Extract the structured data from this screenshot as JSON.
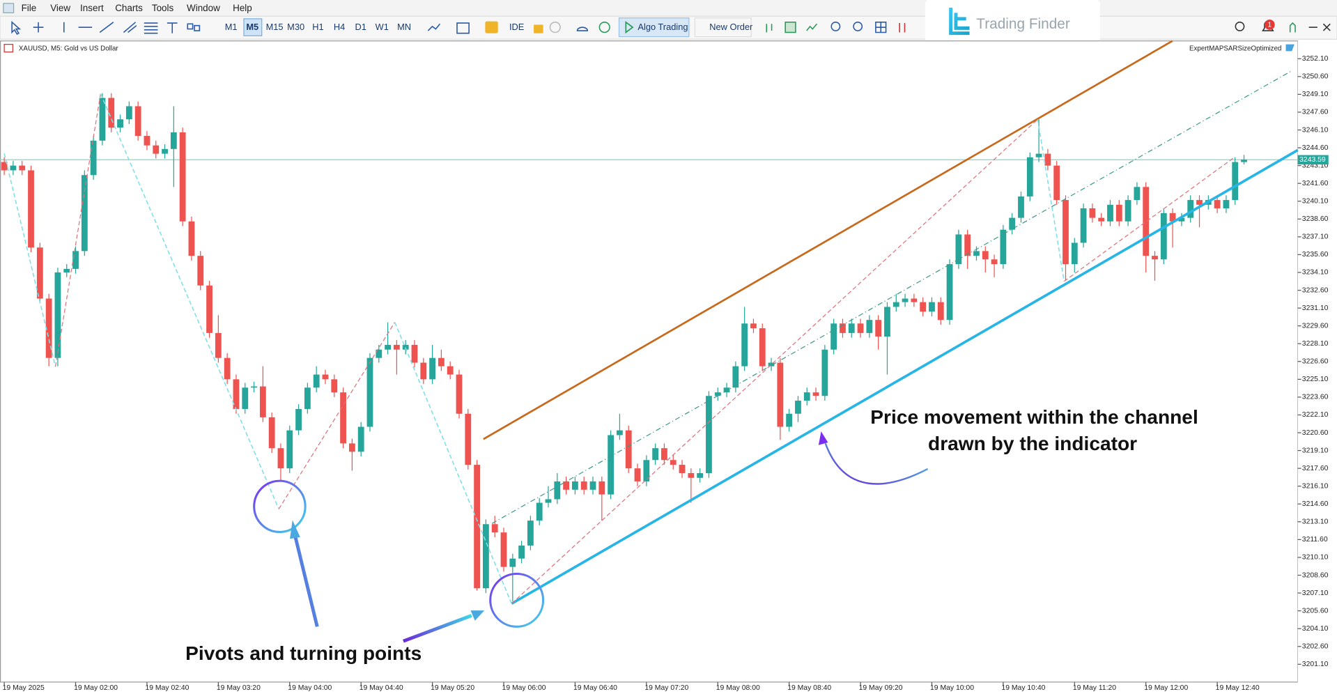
{
  "menu": [
    "File",
    "View",
    "Insert",
    "Charts",
    "Tools",
    "Window",
    "Help"
  ],
  "toolbar": {
    "timeframes": [
      "M1",
      "M5",
      "M15",
      "M30",
      "H1",
      "H4",
      "D1",
      "W1",
      "MN"
    ],
    "selected_timeframe": "M5",
    "ide": "IDE",
    "algo_trading": "Algo Trading",
    "new_order": "New Order"
  },
  "notification_count": 1,
  "logo": "Trading Finder",
  "chart_data": {
    "type": "candlestick",
    "title": "XAUUSD, M5:  Gold vs US Dollar",
    "expert": "ExpertMAPSARSizeOptimized",
    "categories": [
      "19 May 2025",
      null,
      null,
      null,
      null,
      null,
      null,
      null,
      "19 May 02:00",
      null,
      null,
      null,
      null,
      null,
      null,
      null,
      "19 May 02:40",
      null,
      null,
      null,
      null,
      null,
      null,
      null,
      "19 May 03:20",
      null,
      null,
      null,
      null,
      null,
      null,
      null,
      "19 May 04:00",
      null,
      null,
      null,
      null,
      null,
      null,
      null,
      "19 May 04:40",
      null,
      null,
      null,
      null,
      null,
      null,
      null,
      "19 May 05:20",
      null,
      null,
      null,
      null,
      null,
      null,
      null,
      "19 May 06:00",
      null,
      null,
      null,
      null,
      null,
      null,
      null,
      "19 May 06:40",
      null,
      null,
      null,
      null,
      null,
      null,
      null,
      "19 May 07:20",
      null,
      null,
      null,
      null,
      null,
      null,
      null,
      "19 May 08:00",
      null,
      null,
      null,
      null,
      null,
      null,
      null,
      "19 May 08:40",
      null,
      null,
      null,
      null,
      null,
      null,
      null,
      "19 May 09:20",
      null,
      null,
      null,
      null,
      null,
      null,
      null,
      "19 May 10:00",
      null,
      null,
      null,
      null,
      null,
      null,
      null,
      "19 May 10:40",
      null,
      null,
      null,
      null,
      null,
      null,
      null,
      "19 May 11:20",
      null,
      null,
      null,
      null,
      null,
      null,
      null,
      "19 May 12:00",
      null,
      null,
      null,
      null,
      null,
      null,
      null,
      "19 May 12:40",
      null,
      null,
      null
    ],
    "open": [
      3243.4,
      3242.7,
      3243.1,
      3242.7,
      3236.2,
      3231.9,
      3226.9,
      3234.1,
      3234.4,
      3235.9,
      3242.3,
      3245.2,
      3248.8,
      3246.3,
      3247.0,
      3248.1,
      3245.6,
      3244.8,
      3244.1,
      3244.5,
      3245.9,
      3238.4,
      3235.5,
      3233.0,
      3229.0,
      3226.9,
      3225.1,
      3222.6,
      3224.4,
      3224.5,
      3221.9,
      3219.3,
      3217.6,
      3220.8,
      3222.6,
      3224.4,
      3225.5,
      3225.1,
      3224.0,
      3219.7,
      3219.0,
      3221.1,
      3226.9,
      3227.6,
      3228.0,
      3227.6,
      3228.0,
      3226.5,
      3225.1,
      3226.9,
      3226.2,
      3225.5,
      3222.2,
      3217.9,
      3207.5,
      3212.9,
      3212.2,
      3209.3,
      3210.0,
      3211.1,
      3213.2,
      3214.7,
      3215.0,
      3216.5,
      3215.8,
      3216.5,
      3215.8,
      3216.5,
      3215.4,
      3220.4,
      3220.8,
      3217.6,
      3216.5,
      3218.3,
      3219.3,
      3218.3,
      3217.9,
      3217.2,
      3216.8,
      3217.2,
      3223.7,
      3224.0,
      3224.4,
      3226.2,
      3229.8,
      3229.4,
      3226.2,
      3226.5,
      3221.1,
      3222.2,
      3223.3,
      3224.0,
      3223.7,
      3227.6,
      3229.8,
      3229.0,
      3229.8,
      3229.0,
      3230.1,
      3228.7,
      3231.2,
      3231.6,
      3231.9,
      3231.6,
      3230.8,
      3231.6,
      3230.1,
      3234.8,
      3237.3,
      3235.5,
      3235.9,
      3235.2,
      3234.8,
      3237.7,
      3238.7,
      3240.5,
      3243.8,
      3244.1,
      3243.1,
      3240.2,
      3234.8,
      3236.6,
      3239.5,
      3238.7,
      3238.4,
      3239.8,
      3238.4,
      3240.2,
      3241.3,
      3235.5,
      3235.2,
      3239.1,
      3238.4,
      3238.7,
      3240.2,
      3239.8,
      3240.2,
      3239.5,
      3240.2,
      3243.4
    ],
    "high": [
      3243.8,
      3243.5,
      3243.5,
      3243.1,
      3236.6,
      3232.3,
      3234.5,
      3234.8,
      3236.3,
      3242.7,
      3245.6,
      3249.2,
      3249.2,
      3247.4,
      3248.5,
      3248.5,
      3246.0,
      3245.2,
      3244.9,
      3248.1,
      3246.3,
      3238.8,
      3235.9,
      3233.4,
      3230.5,
      3227.3,
      3225.5,
      3224.8,
      3224.9,
      3226.2,
      3222.3,
      3219.7,
      3221.2,
      3223.0,
      3224.8,
      3226.2,
      3225.9,
      3225.5,
      3224.4,
      3220.1,
      3221.5,
      3227.3,
      3228.0,
      3229.9,
      3228.4,
      3228.4,
      3228.4,
      3226.9,
      3228.0,
      3227.6,
      3226.6,
      3225.9,
      3222.6,
      3218.3,
      3213.3,
      3213.6,
      3212.6,
      3210.4,
      3211.5,
      3213.6,
      3215.1,
      3216.1,
      3217.2,
      3216.9,
      3216.9,
      3216.9,
      3216.9,
      3216.9,
      3220.8,
      3222.2,
      3221.2,
      3218.0,
      3218.7,
      3219.7,
      3219.7,
      3218.7,
      3218.3,
      3217.6,
      3217.6,
      3224.1,
      3224.4,
      3224.8,
      3226.6,
      3231.2,
      3230.2,
      3229.8,
      3226.9,
      3226.9,
      3222.6,
      3223.7,
      3224.4,
      3224.4,
      3228.0,
      3230.2,
      3230.2,
      3230.2,
      3230.2,
      3230.5,
      3230.5,
      3231.6,
      3232.3,
      3232.3,
      3232.3,
      3232.0,
      3232.0,
      3232.0,
      3235.2,
      3237.7,
      3237.7,
      3236.3,
      3236.3,
      3235.6,
      3238.1,
      3239.1,
      3240.9,
      3244.2,
      3247.0,
      3244.5,
      3243.5,
      3240.6,
      3237.0,
      3239.9,
      3239.9,
      3239.1,
      3240.2,
      3240.2,
      3240.6,
      3241.7,
      3241.7,
      3235.9,
      3239.5,
      3239.5,
      3239.1,
      3240.6,
      3240.6,
      3240.6,
      3240.6,
      3240.6,
      3243.8,
      3244.0
    ],
    "low": [
      3242.3,
      3242.3,
      3242.3,
      3235.8,
      3231.5,
      3226.2,
      3226.2,
      3233.7,
      3234.0,
      3235.5,
      3241.9,
      3244.8,
      3245.9,
      3245.9,
      3246.6,
      3245.2,
      3244.4,
      3243.7,
      3243.7,
      3241.3,
      3238.0,
      3235.1,
      3232.6,
      3228.6,
      3226.5,
      3224.7,
      3222.2,
      3222.2,
      3224.0,
      3221.5,
      3218.9,
      3216.5,
      3217.2,
      3220.4,
      3222.2,
      3224.0,
      3224.7,
      3223.6,
      3219.3,
      3217.4,
      3218.6,
      3220.7,
      3226.5,
      3227.2,
      3225.5,
      3227.2,
      3226.1,
      3224.7,
      3224.7,
      3225.8,
      3225.1,
      3221.8,
      3217.5,
      3207.3,
      3207.1,
      3211.8,
      3208.9,
      3206.4,
      3209.6,
      3210.7,
      3212.8,
      3214.3,
      3214.6,
      3215.4,
      3215.4,
      3215.4,
      3215.4,
      3213.2,
      3215.0,
      3220.0,
      3217.2,
      3216.1,
      3216.1,
      3217.9,
      3217.9,
      3217.5,
      3216.8,
      3214.7,
      3216.4,
      3216.8,
      3223.3,
      3223.6,
      3224.0,
      3225.8,
      3229.0,
      3225.8,
      3225.8,
      3220.0,
      3220.7,
      3221.5,
      3222.9,
      3223.3,
      3223.3,
      3227.2,
      3228.6,
      3228.6,
      3228.6,
      3228.6,
      3227.6,
      3225.5,
      3230.8,
      3231.2,
      3231.2,
      3230.4,
      3230.4,
      3229.7,
      3229.7,
      3234.4,
      3234.4,
      3235.1,
      3234.1,
      3233.7,
      3234.4,
      3237.3,
      3238.3,
      3240.1,
      3243.4,
      3242.7,
      3239.8,
      3233.4,
      3234.1,
      3236.2,
      3238.3,
      3238.0,
      3238.0,
      3238.0,
      3238.0,
      3239.8,
      3234.1,
      3233.4,
      3234.8,
      3236.2,
      3238.0,
      3238.3,
      3237.9,
      3239.4,
      3239.1,
      3239.1,
      3239.8,
      3243.2
    ],
    "close": [
      3242.7,
      3243.1,
      3242.7,
      3236.2,
      3231.9,
      3226.9,
      3234.1,
      3234.4,
      3235.9,
      3242.3,
      3245.2,
      3248.8,
      3246.3,
      3247.0,
      3248.1,
      3245.6,
      3244.8,
      3244.1,
      3244.5,
      3245.9,
      3238.4,
      3235.5,
      3233.0,
      3229.0,
      3226.9,
      3225.1,
      3222.6,
      3224.4,
      3224.5,
      3221.9,
      3219.3,
      3217.6,
      3220.8,
      3222.6,
      3224.4,
      3225.5,
      3225.1,
      3224.0,
      3219.7,
      3219.0,
      3221.1,
      3226.9,
      3227.6,
      3228.0,
      3227.6,
      3228.0,
      3226.5,
      3225.1,
      3226.9,
      3226.2,
      3225.5,
      3222.2,
      3217.9,
      3207.5,
      3212.9,
      3212.2,
      3209.3,
      3210.0,
      3211.1,
      3213.2,
      3214.7,
      3215.0,
      3216.5,
      3215.8,
      3216.5,
      3215.8,
      3216.5,
      3215.4,
      3220.4,
      3220.8,
      3217.6,
      3216.5,
      3218.3,
      3219.3,
      3218.3,
      3217.9,
      3217.2,
      3216.8,
      3217.2,
      3223.7,
      3224.0,
      3224.4,
      3226.2,
      3229.8,
      3229.4,
      3226.2,
      3226.5,
      3221.1,
      3222.2,
      3223.3,
      3224.0,
      3223.7,
      3227.6,
      3229.8,
      3229.0,
      3229.8,
      3229.0,
      3230.1,
      3228.7,
      3231.2,
      3231.6,
      3231.9,
      3231.6,
      3230.8,
      3231.6,
      3230.1,
      3234.8,
      3237.3,
      3235.5,
      3235.9,
      3235.2,
      3234.8,
      3237.7,
      3238.7,
      3240.5,
      3243.8,
      3244.1,
      3243.1,
      3240.2,
      3234.8,
      3236.6,
      3239.5,
      3238.7,
      3238.4,
      3239.8,
      3238.4,
      3240.2,
      3241.3,
      3235.5,
      3235.2,
      3239.1,
      3238.4,
      3238.7,
      3240.2,
      3239.8,
      3240.2,
      3239.5,
      3240.2,
      3243.4,
      3243.6
    ],
    "up_color": "#26a69a",
    "down_color": "#ef5350",
    "ylim": [
      3199.6,
      3253.6
    ],
    "yticks": [
      {
        "value": 3252.1,
        "label": "3252.10"
      },
      {
        "value": 3250.6,
        "label": "3250.60"
      },
      {
        "value": 3249.1,
        "label": "3249.10"
      },
      {
        "value": 3247.6,
        "label": "3247.60"
      },
      {
        "value": 3246.1,
        "label": "3246.10"
      },
      {
        "value": 3244.6,
        "label": "3244.60"
      },
      {
        "value": 3243.1,
        "label": "3243.10"
      },
      {
        "value": 3241.6,
        "label": "3241.60"
      },
      {
        "value": 3240.1,
        "label": "3240.10"
      },
      {
        "value": 3238.6,
        "label": "3238.60"
      },
      {
        "value": 3237.1,
        "label": "3237.10"
      },
      {
        "value": 3235.6,
        "label": "3235.60"
      },
      {
        "value": 3234.1,
        "label": "3234.10"
      },
      {
        "value": 3232.6,
        "label": "3232.60"
      },
      {
        "value": 3231.1,
        "label": "3231.10"
      },
      {
        "value": 3229.6,
        "label": "3229.60"
      },
      {
        "value": 3228.1,
        "label": "3228.10"
      },
      {
        "value": 3226.6,
        "label": "3226.60"
      },
      {
        "value": 3225.1,
        "label": "3225.10"
      },
      {
        "value": 3223.6,
        "label": "3223.60"
      },
      {
        "value": 3222.1,
        "label": "3222.10"
      },
      {
        "value": 3220.6,
        "label": "3220.60"
      },
      {
        "value": 3219.1,
        "label": "3219.10"
      },
      {
        "value": 3217.6,
        "label": "3217.60"
      },
      {
        "value": 3216.1,
        "label": "3216.10"
      },
      {
        "value": 3214.6,
        "label": "3214.60"
      },
      {
        "value": 3213.1,
        "label": "3213.10"
      },
      {
        "value": 3211.6,
        "label": "3211.60"
      },
      {
        "value": 3210.1,
        "label": "3210.10"
      },
      {
        "value": 3208.6,
        "label": "3208.60"
      },
      {
        "value": 3207.1,
        "label": "3207.10"
      },
      {
        "value": 3205.6,
        "label": "3205.60"
      },
      {
        "value": 3204.1,
        "label": "3204.10"
      },
      {
        "value": 3202.6,
        "label": "3202.60"
      },
      {
        "value": 3201.1,
        "label": "3201.10"
      }
    ],
    "current_price": {
      "value": 3243.59,
      "label": "3243.59"
    },
    "grid": false,
    "annotations": [
      "Price movement within the channel",
      "drawn by the indicator",
      "Pivots and turning points"
    ]
  }
}
